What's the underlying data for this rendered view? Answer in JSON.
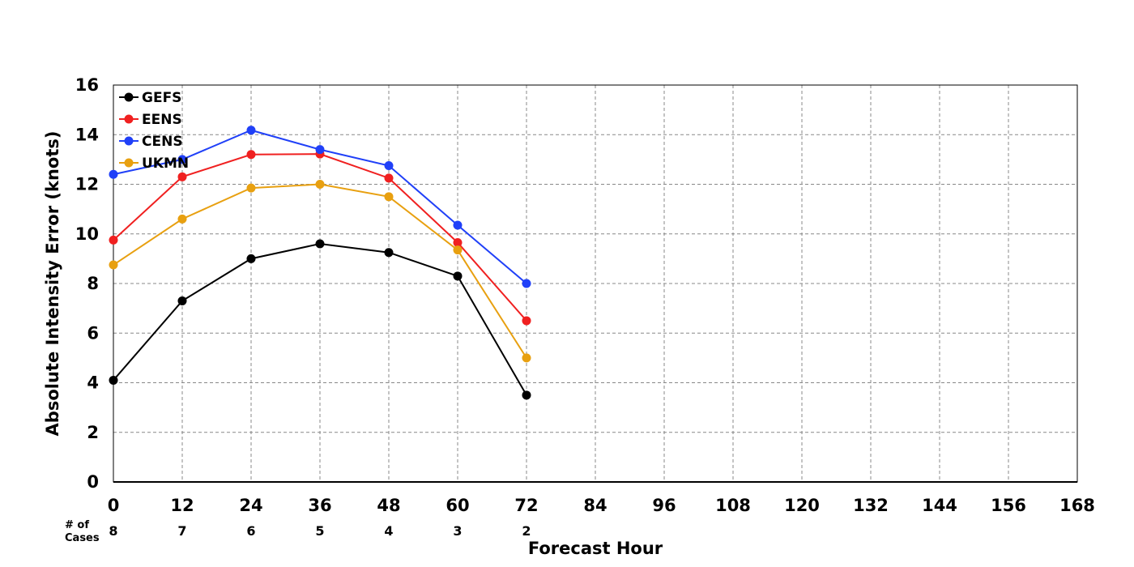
{
  "chart_data": {
    "type": "line",
    "xlabel": "Forecast Hour",
    "ylabel": "Absolute Intensity Error (knots)",
    "xlim": [
      0,
      168
    ],
    "ylim": [
      0,
      16
    ],
    "xticks": [
      0,
      12,
      24,
      36,
      48,
      60,
      72,
      84,
      96,
      108,
      120,
      132,
      144,
      156,
      168
    ],
    "yticks": [
      0,
      2,
      4,
      6,
      8,
      10,
      12,
      14,
      16
    ],
    "grid": true,
    "legend_position": "top-left",
    "x": [
      0,
      12,
      24,
      36,
      48,
      60,
      72
    ],
    "series": [
      {
        "name": "GEFS",
        "color": "#000000",
        "values": [
          4.1,
          7.3,
          9.0,
          9.6,
          9.25,
          8.3,
          3.5
        ]
      },
      {
        "name": "EENS",
        "color": "#f02020",
        "values": [
          9.75,
          12.3,
          13.2,
          13.22,
          12.25,
          9.65,
          6.5
        ]
      },
      {
        "name": "CENS",
        "color": "#2040f8",
        "values": [
          12.4,
          13.0,
          14.18,
          13.4,
          12.75,
          10.35,
          8.0
        ]
      },
      {
        "name": "UKMN",
        "color": "#e8a010",
        "values": [
          8.75,
          10.6,
          11.85,
          12.0,
          11.5,
          9.35,
          5.0
        ]
      }
    ],
    "cases": {
      "label_line1": "# of",
      "label_line2": "Cases",
      "x": [
        0,
        12,
        24,
        36,
        48,
        60,
        72
      ],
      "counts": [
        "8",
        "7",
        "6",
        "5",
        "4",
        "3",
        "2"
      ]
    }
  }
}
